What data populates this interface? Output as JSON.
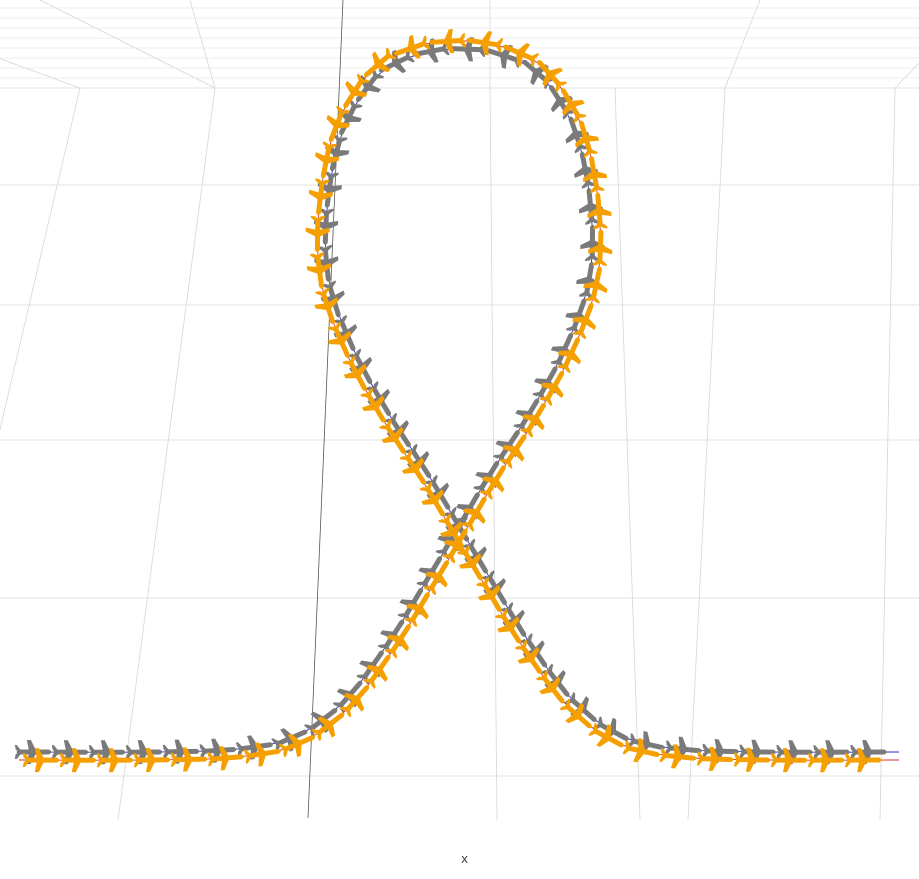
{
  "chart_data": {
    "type": "line",
    "projection": "3d-perspective",
    "xlabel": "x",
    "grid": true,
    "series": [
      {
        "role": "trajectory-outer",
        "color": "#2a2ad0",
        "aircraft_color": "#7a7a7a",
        "offset": 0.0
      },
      {
        "role": "trajectory-inner",
        "color": "#d03030",
        "aircraft_color": "#f5a000",
        "offset": 8.0
      }
    ],
    "path_points": [
      [
        -10.0,
        0.0
      ],
      [
        -7.0,
        0.0
      ],
      [
        -5.0,
        0.05
      ],
      [
        -3.7,
        0.25
      ],
      [
        -2.6,
        0.8
      ],
      [
        -1.6,
        1.7
      ],
      [
        -0.7,
        2.7
      ],
      [
        0.0,
        3.5
      ],
      [
        0.7,
        4.3
      ],
      [
        1.6,
        5.25
      ],
      [
        2.4,
        6.25
      ],
      [
        2.95,
        7.3
      ],
      [
        3.0,
        8.4
      ],
      [
        2.65,
        9.6
      ],
      [
        1.9,
        10.45
      ],
      [
        1.0,
        10.8
      ],
      [
        0.0,
        10.9
      ],
      [
        -1.0,
        10.8
      ],
      [
        -1.9,
        10.45
      ],
      [
        -2.65,
        9.6
      ],
      [
        -3.0,
        8.4
      ],
      [
        -2.95,
        7.3
      ],
      [
        -2.4,
        6.25
      ],
      [
        -1.6,
        5.25
      ],
      [
        -0.7,
        4.3
      ],
      [
        0.0,
        3.5
      ],
      [
        0.7,
        2.7
      ],
      [
        1.6,
        1.7
      ],
      [
        2.6,
        0.8
      ],
      [
        3.7,
        0.25
      ],
      [
        5.0,
        0.05
      ],
      [
        7.0,
        0.0
      ],
      [
        10.0,
        0.0
      ]
    ]
  }
}
